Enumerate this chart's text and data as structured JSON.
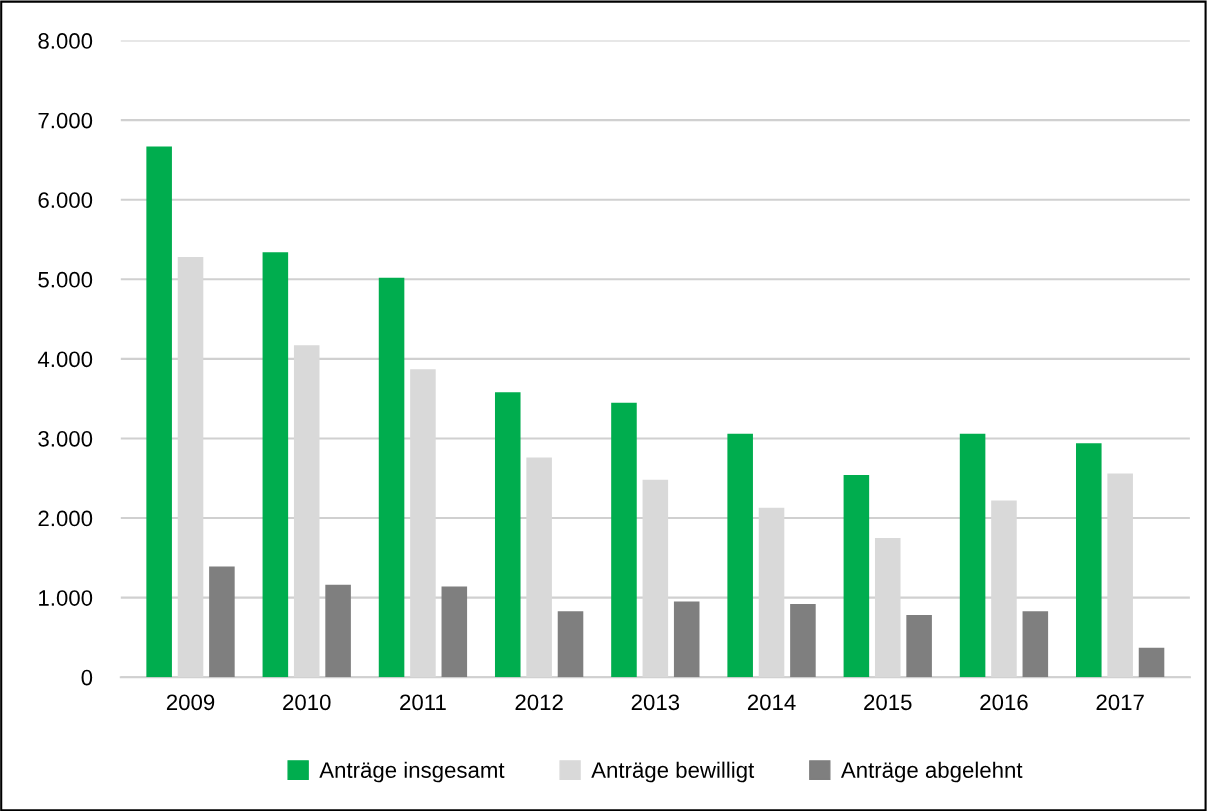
{
  "chart_data": {
    "type": "bar",
    "categories": [
      "2009",
      "2010",
      "2011",
      "2012",
      "2013",
      "2014",
      "2015",
      "2016",
      "2017"
    ],
    "series": [
      {
        "name": "Anträge insgesamt",
        "color": "#00ad4e",
        "values": [
          6670,
          5340,
          5020,
          3580,
          3450,
          3060,
          2540,
          3060,
          2940
        ]
      },
      {
        "name": "Anträge bewilligt",
        "color": "#d9d9d9",
        "values": [
          5280,
          4170,
          3870,
          2760,
          2480,
          2130,
          1750,
          2220,
          2560
        ]
      },
      {
        "name": "Anträge abgelehnt",
        "color": "#7f7f7f",
        "values": [
          1390,
          1160,
          1140,
          830,
          950,
          920,
          780,
          830,
          370
        ]
      }
    ],
    "ylim": [
      0,
      8000
    ],
    "yticks": [
      {
        "value": 0,
        "label": "0"
      },
      {
        "value": 1000,
        "label": "1.000"
      },
      {
        "value": 2000,
        "label": "2.000"
      },
      {
        "value": 3000,
        "label": "3.000"
      },
      {
        "value": 4000,
        "label": "4.000"
      },
      {
        "value": 5000,
        "label": "5.000"
      },
      {
        "value": 6000,
        "label": "6.000"
      },
      {
        "value": 7000,
        "label": "7.000"
      },
      {
        "value": 8000,
        "label": "8.000"
      }
    ],
    "grid": "y",
    "legend": "bottom"
  }
}
